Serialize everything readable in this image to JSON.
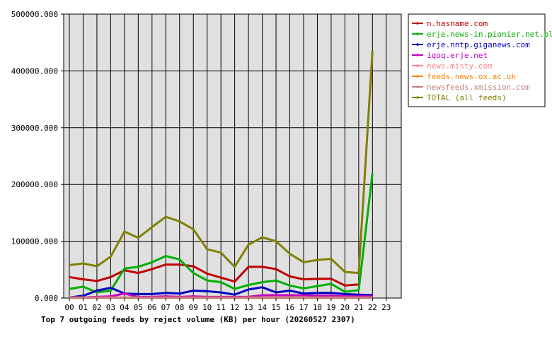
{
  "chart_data": {
    "type": "line",
    "title": "Top 7 outgoing feeds by reject volume (KB) per hour (20260527 2307)",
    "x": [
      "00",
      "01",
      "02",
      "03",
      "04",
      "05",
      "06",
      "07",
      "08",
      "09",
      "10",
      "11",
      "12",
      "13",
      "14",
      "15",
      "16",
      "17",
      "18",
      "19",
      "20",
      "21",
      "22",
      "23"
    ],
    "yticks": [
      "0.000",
      "100000.000",
      "200000.000",
      "300000.000",
      "400000.000",
      "500000.000"
    ],
    "ylim": [
      0,
      500000
    ],
    "grid": true,
    "legend": "right",
    "series": [
      {
        "name": "n.hasname.com",
        "color": "#c00000",
        "values": [
          37000,
          33000,
          30000,
          37000,
          49000,
          44000,
          51000,
          59000,
          59000,
          56000,
          43000,
          36000,
          29000,
          55000,
          55000,
          51000,
          38000,
          33000,
          34000,
          34000,
          22000,
          24000,
          null,
          null
        ]
      },
      {
        "name": "erje.news-in.pionier.net.pl",
        "color": "#00b000",
        "values": [
          16000,
          20000,
          10000,
          13000,
          52000,
          55000,
          63000,
          74000,
          68000,
          44000,
          31000,
          28000,
          16000,
          23000,
          28000,
          31000,
          22000,
          17000,
          21000,
          25000,
          11000,
          14000,
          220000,
          null
        ]
      },
      {
        "name": "erje.nntp.giganews.com",
        "color": "#0000c0",
        "values": [
          1000,
          4000,
          13000,
          18000,
          8000,
          7000,
          7000,
          9000,
          8000,
          13000,
          12000,
          10000,
          6000,
          15000,
          19000,
          10000,
          13000,
          8000,
          9000,
          9000,
          7000,
          6000,
          5000,
          null
        ]
      },
      {
        "name": "iqoq.erje.net",
        "color": "#c000c0",
        "values": [
          1000,
          1000,
          2000,
          3000,
          8000,
          2000,
          2000,
          3000,
          2000,
          3000,
          2000,
          2000,
          2000,
          2000,
          5000,
          5000,
          5000,
          5000,
          4000,
          4000,
          3000,
          3000,
          3000,
          null
        ]
      },
      {
        "name": "news.misty.com",
        "color": "#ff8080",
        "values": [
          1000,
          1000,
          1000,
          1000,
          1000,
          1000,
          1000,
          1000,
          1000,
          1000,
          1000,
          1000,
          1000,
          1000,
          1000,
          1000,
          1000,
          1000,
          1000,
          1000,
          1000,
          1000,
          1000,
          null
        ]
      },
      {
        "name": "feeds.news.ox.ac.uk",
        "color": "#ff8000",
        "values": [
          500,
          500,
          500,
          500,
          500,
          500,
          500,
          500,
          500,
          500,
          500,
          500,
          500,
          500,
          500,
          500,
          500,
          500,
          500,
          500,
          500,
          500,
          500,
          null
        ]
      },
      {
        "name": "newsfeeds.xmission.com",
        "color": "#c08080",
        "values": [
          300,
          300,
          300,
          300,
          300,
          300,
          300,
          300,
          300,
          300,
          300,
          300,
          300,
          300,
          300,
          300,
          300,
          300,
          300,
          300,
          300,
          300,
          300,
          null
        ]
      },
      {
        "name": "TOTAL (all feeds)",
        "color": "#808000",
        "values": [
          58000,
          61000,
          56000,
          73000,
          117000,
          106000,
          125000,
          143000,
          135000,
          121000,
          86000,
          80000,
          55000,
          94000,
          107000,
          100000,
          78000,
          63000,
          67000,
          69000,
          46000,
          44000,
          435000,
          null
        ]
      }
    ]
  }
}
